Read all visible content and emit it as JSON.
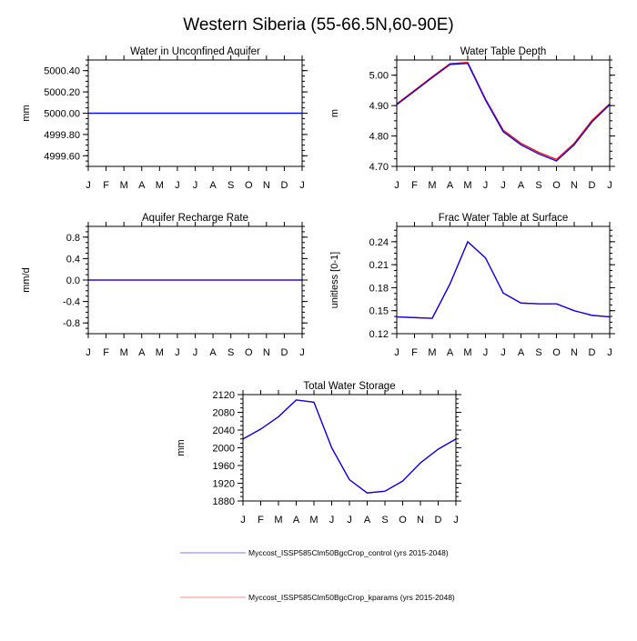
{
  "chart_data": {
    "title": "Western Siberia (55-66.5N,60-90E)",
    "legend": {
      "placement": "bottom-center",
      "entries": [
        {
          "name": "Myccost_ISSP585Clm50BgcCrop_control (yrs 2015-2048)",
          "color": "#0000ff"
        },
        {
          "name": "Myccost_ISSP585Clm50BgcCrop_kparams (yrs 2015-2048)",
          "color": "#ff0000"
        }
      ]
    },
    "x": [
      "J",
      "F",
      "M",
      "A",
      "M",
      "J",
      "J",
      "A",
      "S",
      "O",
      "N",
      "D",
      "J"
    ],
    "panels": [
      {
        "type": "line",
        "title": "Water in Unconfined Aquifer",
        "ylabel": "mm",
        "ylim": [
          4999.5,
          5000.5
        ],
        "yticks": [
          "4999.60",
          "4999.80",
          "5000.00",
          "5000.20",
          "5000.40"
        ],
        "ytick_values": [
          4999.6,
          4999.8,
          5000.0,
          5000.2,
          5000.4
        ],
        "series": [
          {
            "name": "control",
            "values": [
              5000,
              5000,
              5000,
              5000,
              5000,
              5000,
              5000,
              5000,
              5000,
              5000,
              5000,
              5000,
              5000
            ]
          },
          {
            "name": "kparams",
            "values": [
              5000,
              5000,
              5000,
              5000,
              5000,
              5000,
              5000,
              5000,
              5000,
              5000,
              5000,
              5000,
              5000
            ]
          }
        ]
      },
      {
        "type": "line",
        "title": "Water Table Depth",
        "ylabel": "m",
        "ylim": [
          4.7,
          5.05
        ],
        "yticks": [
          "4.70",
          "4.80",
          "4.90",
          "5.00"
        ],
        "ytick_values": [
          4.7,
          4.8,
          4.9,
          5.0
        ],
        "series": [
          {
            "name": "control",
            "values": [
              4.903,
              4.947,
              4.992,
              5.035,
              5.039,
              4.918,
              4.814,
              4.771,
              4.741,
              4.718,
              4.771,
              4.846,
              4.903
            ]
          },
          {
            "name": "kparams",
            "values": [
              4.906,
              4.95,
              4.995,
              5.038,
              5.042,
              4.922,
              4.819,
              4.776,
              4.746,
              4.723,
              4.776,
              4.851,
              4.906
            ]
          }
        ]
      },
      {
        "type": "line",
        "title": "Aquifer Recharge Rate",
        "ylabel": "mm/d",
        "ylim": [
          -1,
          1
        ],
        "yticks": [
          "-0.8",
          "-0.4",
          "0.0",
          "0.4",
          "0.8"
        ],
        "ytick_values": [
          -0.8,
          -0.4,
          0,
          0.4,
          0.8
        ],
        "series": [
          {
            "name": "control",
            "values": [
              0,
              0,
              0,
              0,
              0,
              0,
              0,
              0,
              0,
              0,
              0,
              0,
              0
            ]
          },
          {
            "name": "kparams",
            "values": [
              0,
              0,
              0,
              0,
              0,
              0,
              0,
              0,
              0,
              0,
              0,
              0,
              0
            ]
          }
        ]
      },
      {
        "type": "line",
        "title": "Frac Water Table at Surface",
        "ylabel": "unitless [0-1]",
        "ylim": [
          0.12,
          0.26
        ],
        "yticks": [
          "0.12",
          "0.15",
          "0.18",
          "0.21",
          "0.24"
        ],
        "ytick_values": [
          0.12,
          0.15,
          0.18,
          0.21,
          0.24
        ],
        "series": [
          {
            "name": "control",
            "values": [
              0.142,
              0.141,
              0.14,
              0.185,
              0.24,
              0.219,
              0.173,
              0.16,
              0.159,
              0.159,
              0.15,
              0.144,
              0.142
            ]
          },
          {
            "name": "kparams",
            "values": [
              0.142,
              0.141,
              0.14,
              0.185,
              0.24,
              0.219,
              0.173,
              0.16,
              0.159,
              0.159,
              0.15,
              0.144,
              0.142
            ]
          }
        ]
      },
      {
        "type": "line",
        "title": "Total Water Storage",
        "ylabel": "mm",
        "ylim": [
          1880,
          2120
        ],
        "yticks": [
          "1880",
          "1920",
          "1960",
          "2000",
          "2040",
          "2080",
          "2120"
        ],
        "ytick_values": [
          1880,
          1920,
          1960,
          2000,
          2040,
          2080,
          2120
        ],
        "series": [
          {
            "name": "control",
            "values": [
              2020,
              2042,
              2070,
              2108,
              2103,
              2000,
              1928,
              1898,
              1902,
              1925,
              1966,
              1997,
              2020
            ]
          },
          {
            "name": "kparams",
            "values": [
              2020,
              2042,
              2070,
              2108,
              2103,
              2000,
              1928,
              1898,
              1902,
              1925,
              1966,
              1997,
              2020
            ]
          }
        ]
      }
    ]
  }
}
